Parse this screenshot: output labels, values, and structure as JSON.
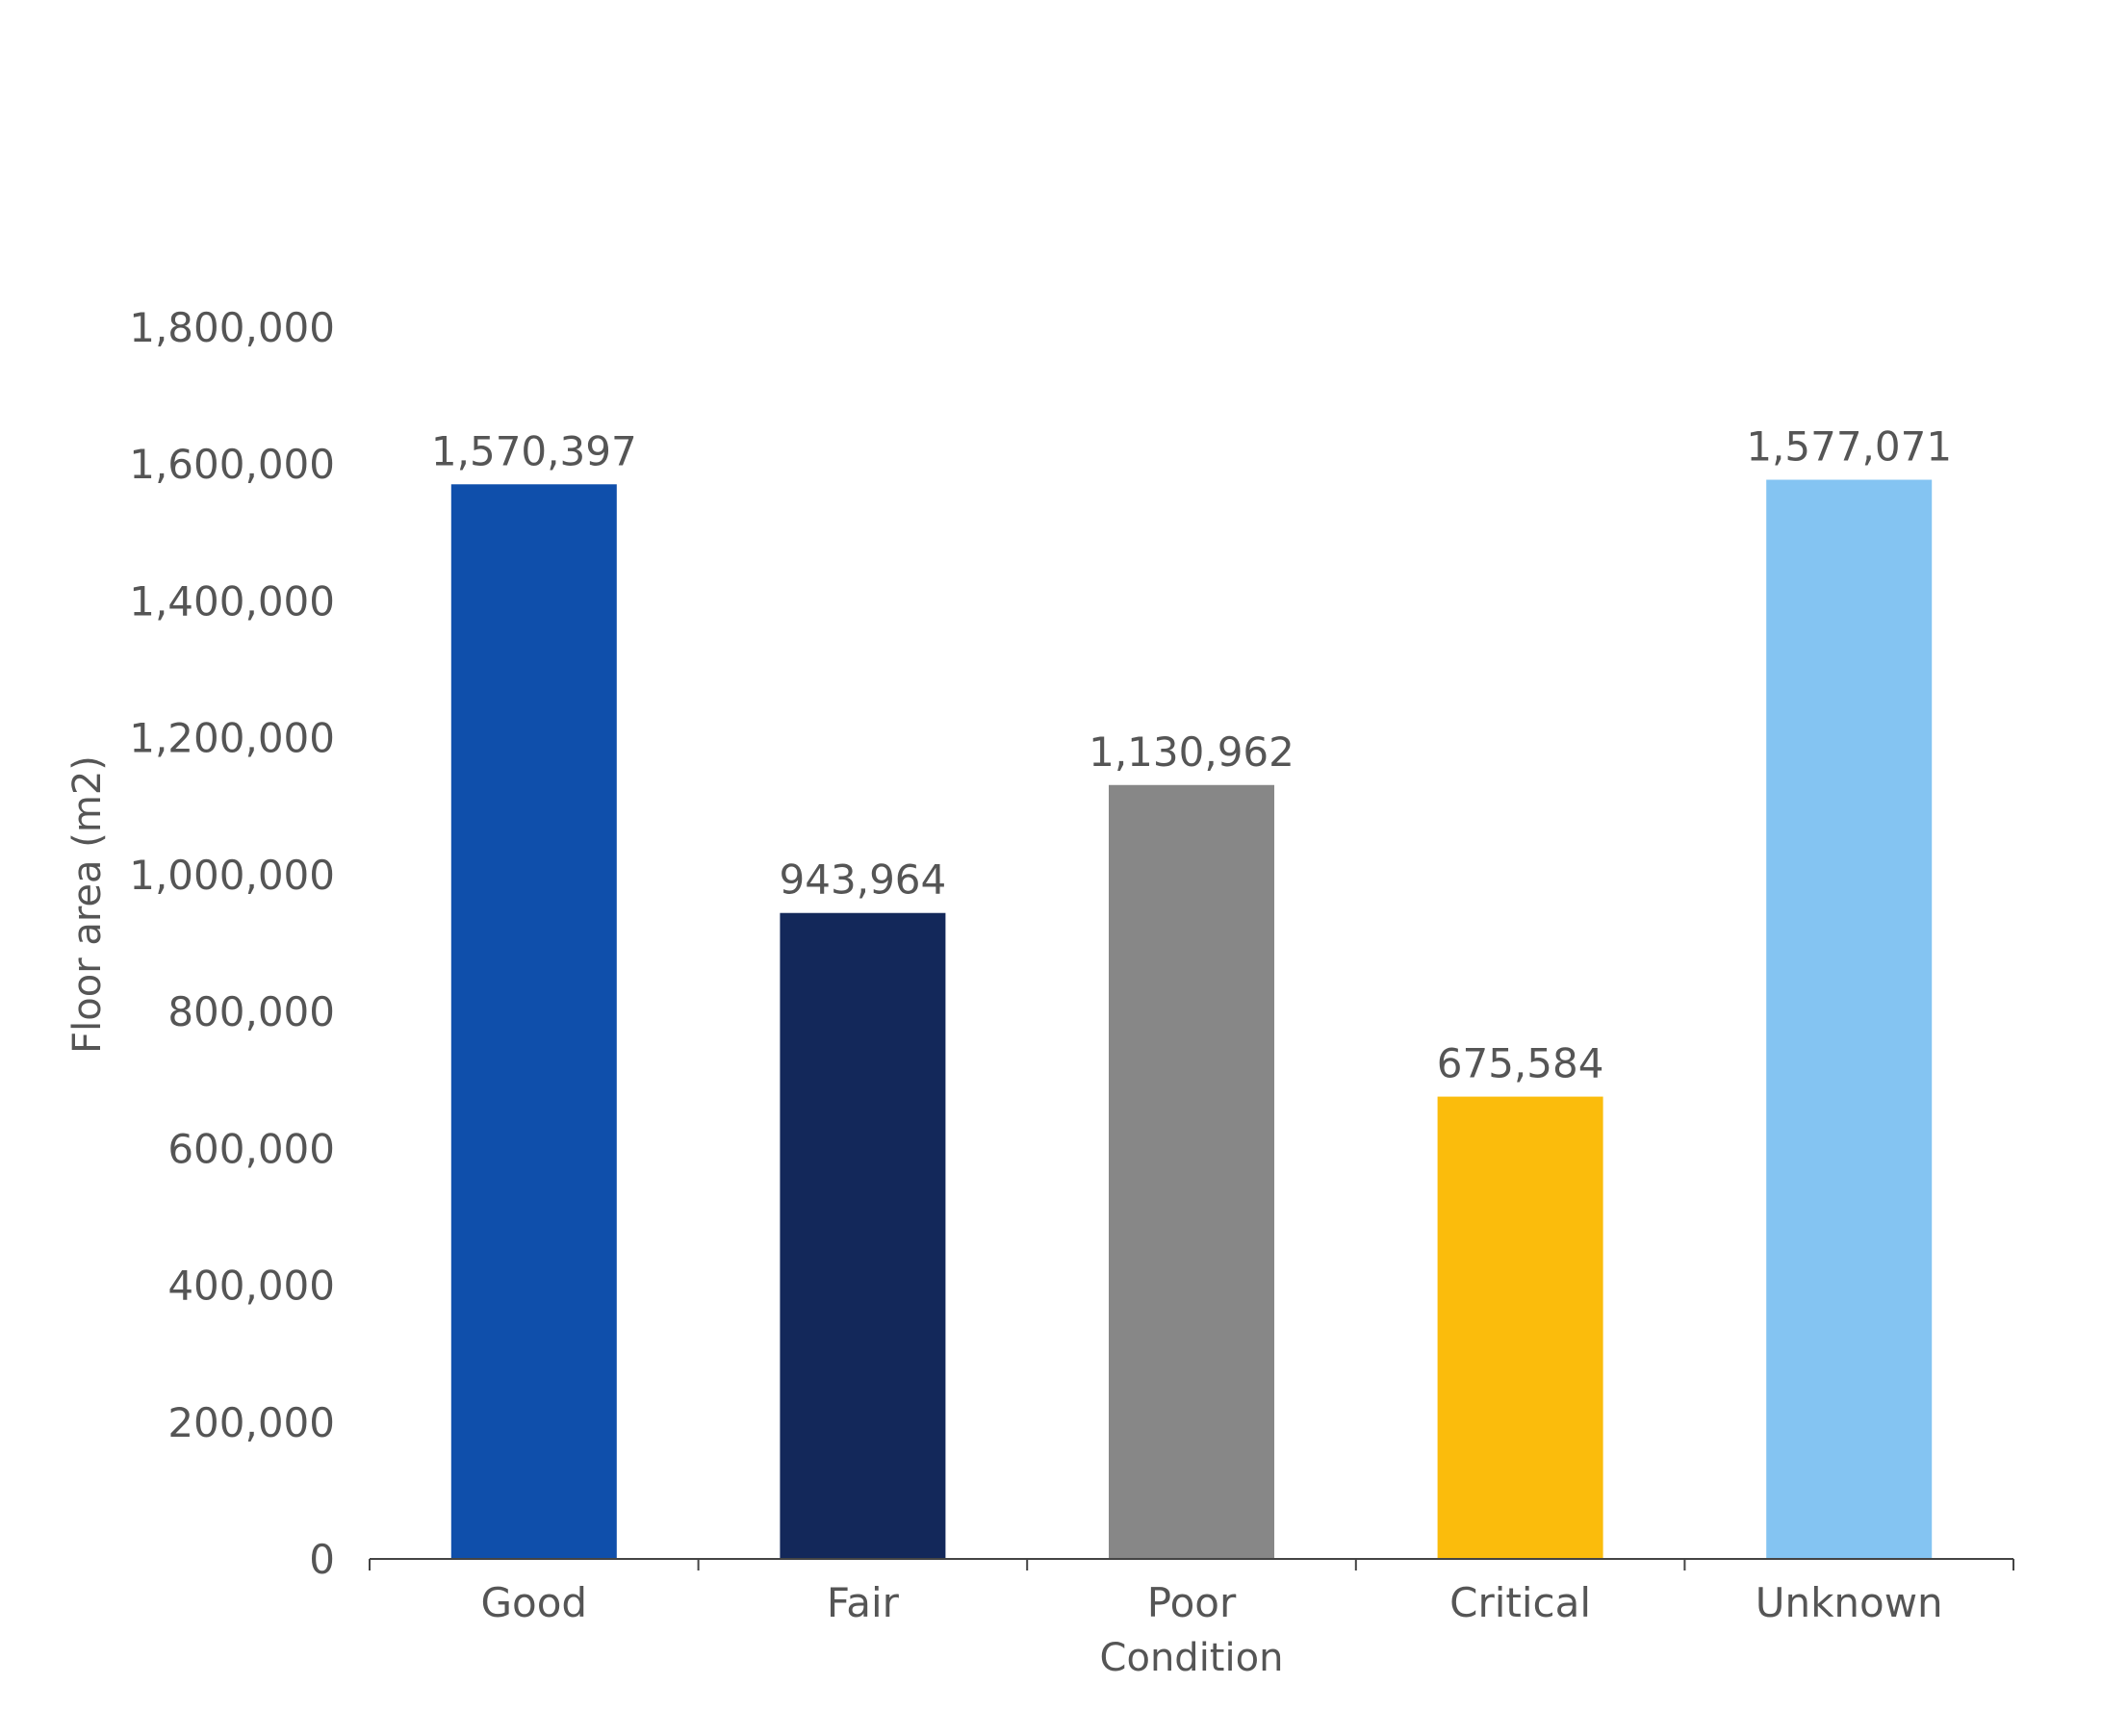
{
  "chart_data": {
    "type": "bar",
    "categories": [
      "Good",
      "Fair",
      "Poor",
      "Critical",
      "Unknown"
    ],
    "values": [
      1570397,
      943964,
      1130962,
      675584,
      1577071
    ],
    "data_labels": [
      "1,570,397",
      "943,964",
      "1,130,962",
      "675,584",
      "1,577,071"
    ],
    "colors": [
      "#0F4FAB",
      "#13285A",
      "#878787",
      "#FBBC0C",
      "#84C4F2"
    ],
    "title": "",
    "xlabel": "Condition",
    "ylabel": "Floor area (m2)",
    "ylim": [
      0,
      1800000
    ],
    "yticks": [
      0,
      200000,
      400000,
      600000,
      800000,
      1000000,
      1200000,
      1400000,
      1600000,
      1800000
    ],
    "ytick_labels": [
      "0",
      "200,000",
      "400,000",
      "600,000",
      "800,000",
      "1,000,000",
      "1,200,000",
      "1,400,000",
      "1,600,000",
      "1,800,000"
    ],
    "grid": false,
    "legend": "none"
  }
}
